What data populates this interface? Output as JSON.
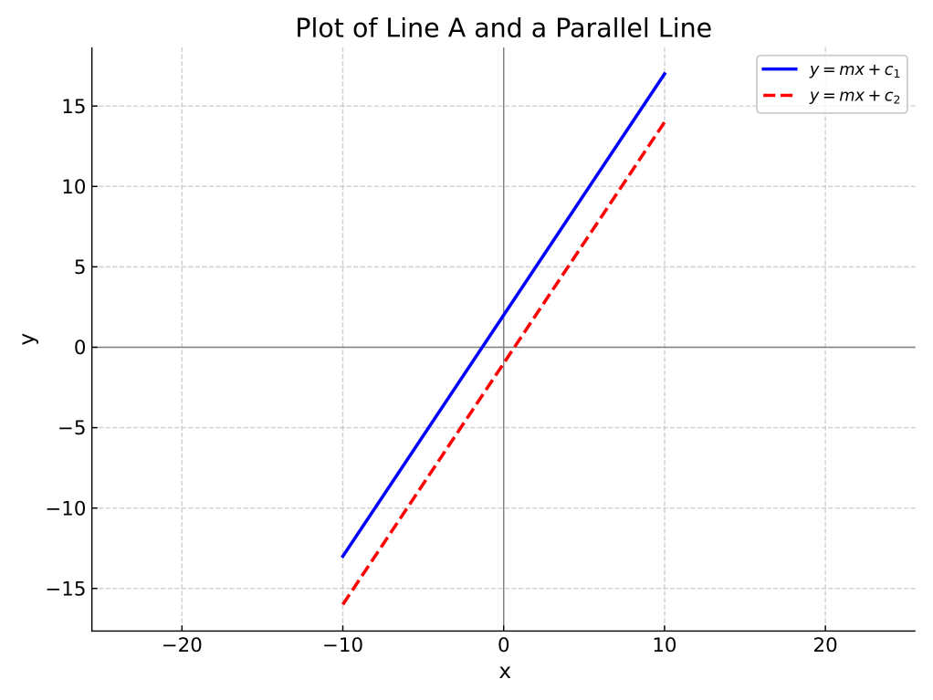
{
  "figure": {
    "background": "#ffffff",
    "text_color": "#000000"
  },
  "chart_data": {
    "type": "line",
    "title": "Plot of Line A and a Parallel Line",
    "xlabel": "x",
    "ylabel": "y",
    "xlim": [
      -25.6,
      25.6
    ],
    "ylim": [
      -17.65,
      18.65
    ],
    "xticks": [
      {
        "value": -20,
        "label": "−20"
      },
      {
        "value": -10,
        "label": "−10"
      },
      {
        "value": 0,
        "label": "0"
      },
      {
        "value": 10,
        "label": "10"
      },
      {
        "value": 20,
        "label": "20"
      }
    ],
    "yticks": [
      {
        "value": -15,
        "label": "−15"
      },
      {
        "value": -10,
        "label": "−10"
      },
      {
        "value": -5,
        "label": "−5"
      },
      {
        "value": 0,
        "label": "0"
      },
      {
        "value": 5,
        "label": "5"
      },
      {
        "value": 10,
        "label": "10"
      },
      {
        "value": 15,
        "label": "15"
      }
    ],
    "grid": {
      "on": true,
      "linestyle": "dashed",
      "color": "#b0b0b0",
      "alpha": 0.6
    },
    "zero_lines": {
      "x": 0,
      "y": 0,
      "color": "#808080"
    },
    "series": [
      {
        "name": "Line A",
        "label": "y = mx + c_1",
        "color": "#0000ff",
        "linestyle": "solid",
        "x": [
          -10,
          10
        ],
        "y": [
          -13,
          17
        ]
      },
      {
        "name": "Parallel Line",
        "label": "y = mx + c_2",
        "color": "#ff0000",
        "linestyle": "dashed",
        "x": [
          -10,
          10
        ],
        "y": [
          -16,
          14
        ]
      }
    ],
    "legend": {
      "loc": "upper right",
      "frame_color": "#cccccc",
      "background": "#ffffff",
      "entries": [
        {
          "glyphs": [
            "y",
            "=",
            "m",
            "x",
            "+",
            "c"
          ],
          "sub": "1"
        },
        {
          "glyphs": [
            "y",
            "=",
            "m",
            "x",
            "+",
            "c"
          ],
          "sub": "2"
        }
      ]
    }
  }
}
